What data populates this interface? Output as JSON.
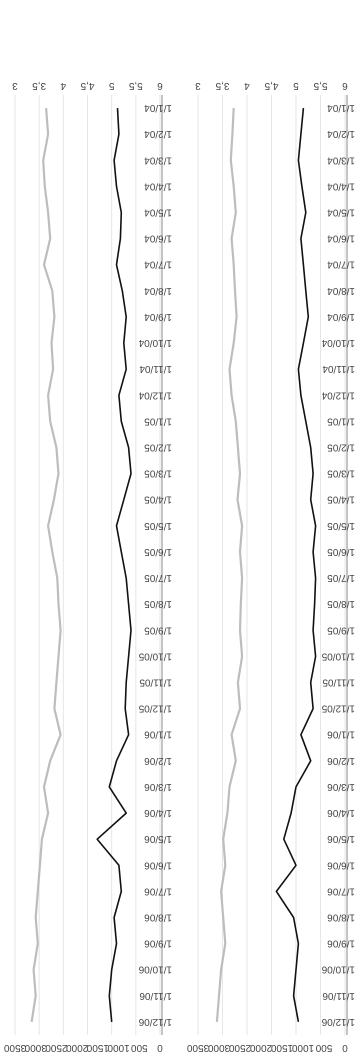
{
  "chart_data": [
    {
      "type": "line",
      "title": "",
      "xlabel": "",
      "ylabel_left": "",
      "ylabel_right": "",
      "x_tick_labels": [
        "1/1/04",
        "1/2/04",
        "1/3/04",
        "1/4/04",
        "1/5/04",
        "1/6/04",
        "1/7/04",
        "1/8/04",
        "1/9/04",
        "1/10/04",
        "1/11/04",
        "1/12/04",
        "1/1/05",
        "1/2/05",
        "1/3/05",
        "1/4/05",
        "1/5/05",
        "1/6/05",
        "1/7/05",
        "1/8/05",
        "1/9/05",
        "1/10/05",
        "1/11/05",
        "1/12/05",
        "1/1/06",
        "1/2/06",
        "1/3/06",
        "1/4/06",
        "1/5/06",
        "1/6/06",
        "1/7/06",
        "1/8/06",
        "1/9/06",
        "1/10/06",
        "1/11/06",
        "1/12/06"
      ],
      "left_axis": {
        "ylim": [
          3,
          6
        ],
        "ticks": [
          "3",
          "3,5",
          "4",
          "4,5",
          "5",
          "5,5",
          "6"
        ]
      },
      "right_axis": {
        "ylim": [
          0,
          3500
        ],
        "ticks": [
          "0",
          "500",
          "1000",
          "1500",
          "2000",
          "2500",
          "3000",
          "3500"
        ]
      },
      "grid": true,
      "colors": {
        "black_series": "#111111",
        "gray_series": "#bdbdbd",
        "grid": "#e6e6e6"
      },
      "series": [
        {
          "axis": "left",
          "color": "black",
          "values": [
            5.12,
            5.15,
            5.05,
            5.1,
            5.2,
            5.18,
            5.1,
            5.22,
            5.3,
            5.25,
            5.3,
            5.15,
            5.2,
            5.35,
            5.4,
            5.25,
            5.1,
            5.2,
            5.3,
            5.35,
            5.4,
            5.35,
            5.3,
            5.28,
            5.35,
            5.1,
            4.95,
            5.3,
            4.7,
            5.15,
            5.2,
            5.05,
            5.1,
            5.0,
            4.95,
            5.0
          ]
        },
        {
          "axis": "right",
          "color": "gray",
          "values": [
            2750,
            2700,
            2820,
            2780,
            2700,
            2650,
            2800,
            2600,
            2550,
            2620,
            2580,
            2700,
            2650,
            2500,
            2450,
            2560,
            2700,
            2600,
            2480,
            2450,
            2400,
            2450,
            2500,
            2550,
            2400,
            2650,
            2800,
            2700,
            2850,
            2900,
            2950,
            3000,
            2950,
            3050,
            3000,
            3100
          ]
        }
      ]
    },
    {
      "type": "line",
      "title": "",
      "xlabel": "",
      "ylabel_left": "",
      "ylabel_right": "",
      "x_tick_labels": [
        "1/1/04",
        "1/2/04",
        "1/3/04",
        "1/4/04",
        "1/5/04",
        "1/6/04",
        "1/7/04",
        "1/8/04",
        "1/9/04",
        "1/10/04",
        "1/11/04",
        "1/12/04",
        "1/1/05",
        "1/2/05",
        "1/3/05",
        "1/4/05",
        "1/5/05",
        "1/6/05",
        "1/7/05",
        "1/8/05",
        "1/9/05",
        "1/10/05",
        "1/11/05",
        "1/12/05",
        "1/1/06",
        "1/2/06",
        "1/3/06",
        "1/4/06",
        "1/5/06",
        "1/6/06",
        "1/7/06",
        "1/8/06",
        "1/9/06",
        "1/10/06",
        "1/11/06",
        "1/12/06"
      ],
      "left_axis": {
        "ylim": [
          3,
          6
        ],
        "ticks": [
          "3",
          "3,5",
          "4",
          "4,5",
          "5",
          "5,5",
          "6"
        ]
      },
      "right_axis": {
        "ylim": [
          0,
          3500
        ],
        "ticks": [
          "0",
          "500",
          "1000",
          "1500",
          "2000",
          "2500",
          "3000",
          "3500"
        ]
      },
      "grid": true,
      "colors": {
        "black_series": "#111111",
        "gray_series": "#bdbdbd",
        "grid": "#e6e6e6"
      },
      "series": [
        {
          "axis": "left",
          "color": "black",
          "values": [
            5.15,
            5.1,
            5.05,
            5.12,
            5.2,
            5.1,
            5.15,
            5.2,
            5.25,
            5.15,
            5.05,
            5.1,
            5.2,
            5.3,
            5.35,
            5.3,
            5.4,
            5.35,
            5.4,
            5.38,
            5.35,
            5.4,
            5.3,
            5.35,
            5.1,
            5.3,
            5.0,
            4.9,
            4.75,
            5.0,
            4.6,
            4.95,
            5.05,
            5.0,
            4.95,
            5.05
          ]
        },
        {
          "axis": "right",
          "color": "gray",
          "values": [
            2650,
            2680,
            2720,
            2650,
            2600,
            2700,
            2650,
            2620,
            2580,
            2650,
            2750,
            2700,
            2600,
            2550,
            2500,
            2560,
            2450,
            2500,
            2450,
            2480,
            2500,
            2450,
            2550,
            2500,
            2700,
            2600,
            2750,
            2800,
            2900,
            2850,
            2950,
            2900,
            2850,
            2950,
            3000,
            3050
          ]
        }
      ]
    }
  ]
}
